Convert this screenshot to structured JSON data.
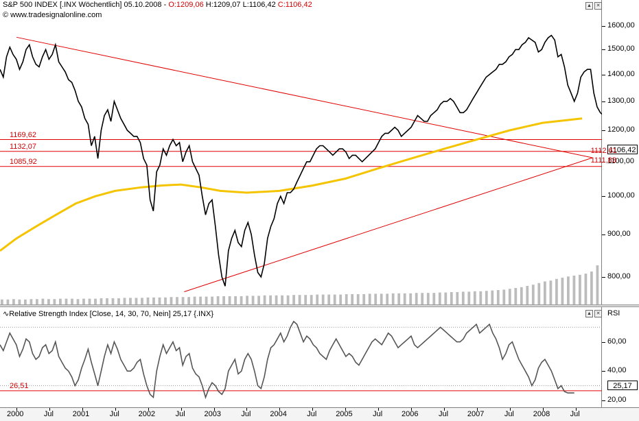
{
  "header": {
    "title": "S&P 500 INDEX [.INX  Wöchentlich] 05.10.2008 - ",
    "open": "O:1209,06",
    "high": "H:1209,07",
    "low": "L:1106,42",
    "close": "C:1106,42",
    "credit": "© www.tradesignalonline.com"
  },
  "rsi_header": {
    "title": "Relative Strength Index [Close, 14, 30, 70, Nein] 25,17 {.INX}",
    "side_label": "RSI"
  },
  "price_box": "1106,42",
  "rsi_box": "25,17",
  "colors": {
    "price": "#000000",
    "ma": "#f5c400",
    "lines": "#e00000",
    "rsi": "#555555",
    "volume": "#bcbcbc"
  },
  "chart_data": [
    {
      "type": "line",
      "title": "S&P 500 INDEX",
      "series": [
        {
          "name": "S&P 500 INDEX",
          "values": [
            1420,
            1390,
            1470,
            1510,
            1480,
            1460,
            1420,
            1450,
            1500,
            1520,
            1470,
            1440,
            1430,
            1470,
            1500,
            1460,
            1480,
            1520,
            1450,
            1430,
            1410,
            1380,
            1370,
            1340,
            1300,
            1280,
            1240,
            1220,
            1150,
            1180,
            1110,
            1200,
            1250,
            1270,
            1230,
            1300,
            1270,
            1240,
            1220,
            1200,
            1190,
            1180,
            1180,
            1160,
            1110,
            1090,
            990,
            960,
            1070,
            1090,
            1140,
            1120,
            1150,
            1170,
            1150,
            1160,
            1100,
            1130,
            1150,
            1100,
            1080,
            1060,
            1000,
            950,
            980,
            990,
            920,
            850,
            800,
            780,
            860,
            890,
            910,
            880,
            870,
            910,
            930,
            900,
            850,
            810,
            800,
            830,
            890,
            920,
            940,
            980,
            1000,
            980,
            1010,
            1010,
            1020,
            1040,
            1060,
            1080,
            1100,
            1100,
            1120,
            1140,
            1150,
            1150,
            1140,
            1130,
            1120,
            1130,
            1140,
            1140,
            1130,
            1110,
            1120,
            1120,
            1110,
            1100,
            1110,
            1120,
            1130,
            1140,
            1160,
            1180,
            1190,
            1190,
            1200,
            1210,
            1200,
            1180,
            1190,
            1200,
            1210,
            1230,
            1250,
            1240,
            1230,
            1230,
            1250,
            1260,
            1270,
            1290,
            1300,
            1300,
            1310,
            1300,
            1280,
            1260,
            1260,
            1270,
            1290,
            1310,
            1330,
            1350,
            1370,
            1390,
            1400,
            1410,
            1420,
            1440,
            1440,
            1450,
            1470,
            1480,
            1500,
            1500,
            1520,
            1530,
            1550,
            1540,
            1530,
            1490,
            1500,
            1530,
            1550,
            1560,
            1540,
            1470,
            1480,
            1430,
            1360,
            1330,
            1300,
            1330,
            1390,
            1410,
            1420,
            1420,
            1330,
            1280,
            1260,
            1250,
            1200,
            1106
          ],
          "x_start": 1999.75,
          "x_step": 0.0496
        },
        {
          "name": "MA",
          "values": [
            860,
            890,
            920,
            950,
            980,
            1000,
            1015,
            1025,
            1030,
            1033,
            1025,
            1015,
            1010,
            1015,
            1030,
            1050,
            1080,
            1110,
            1140,
            1170,
            1200,
            1225,
            1240
          ],
          "x": [
            1999.75,
            2000.0,
            2000.3,
            2000.6,
            2000.9,
            2001.2,
            2001.5,
            2001.9,
            2002.2,
            2002.5,
            2002.8,
            2003.1,
            2003.5,
            2004.0,
            2004.5,
            2005.0,
            2005.5,
            2006.0,
            2006.5,
            2007.0,
            2007.5,
            2008.0,
            2008.6
          ]
        }
      ],
      "y_axis_labels": [
        "1600,00",
        "1500,00",
        "1400,00",
        "1300,00",
        "1200,00",
        "1100,00",
        "1000,00",
        "900,00",
        "800,00"
      ],
      "ylim": [
        750,
        1650
      ],
      "horizontal_lines": [
        {
          "label": "1169,62",
          "value": 1169.62
        },
        {
          "label": "1132,07",
          "value": 1132.07
        },
        {
          "label": "1085,92",
          "value": 1085.92
        }
      ],
      "trendlines": [
        {
          "x": [
            2000.0,
            2008.75
          ],
          "y": [
            1552,
            1112.61
          ],
          "label": "1112,61"
        },
        {
          "x": [
            2002.55,
            2008.75
          ],
          "y": [
            768,
            1111.83
          ],
          "label": "1111,83"
        }
      ],
      "volume": {
        "x_start": 1999.75,
        "x_step": 0.0496,
        "values": [
          12,
          12,
          13,
          12,
          12,
          13,
          13,
          14,
          13,
          13,
          14,
          14,
          14,
          13,
          14,
          14,
          14,
          15,
          15,
          15,
          15,
          16,
          16,
          16,
          16,
          17,
          17,
          17,
          17,
          18,
          18,
          18,
          18,
          19,
          19,
          19,
          19,
          20,
          20,
          20,
          20,
          20,
          21,
          21,
          21,
          22,
          22,
          22,
          22,
          22,
          23,
          23,
          23,
          23,
          24,
          24,
          24,
          24,
          24,
          25,
          25,
          25,
          25,
          26,
          26,
          26,
          26,
          27,
          27,
          27,
          27,
          28,
          28,
          28,
          28,
          29,
          29,
          30,
          30,
          31,
          31,
          32,
          32,
          33,
          34,
          35,
          36,
          38,
          40,
          42,
          45,
          48,
          52,
          56,
          58,
          62,
          65,
          68,
          70,
          72,
          75,
          80,
          95
        ],
        "unit": "relative"
      }
    },
    {
      "type": "line",
      "title": "Relative Strength Index [Close, 14, 30, 70, Nein] 25,17 {.INX}",
      "series": [
        {
          "name": "RSI",
          "values": [
            58,
            54,
            60,
            66,
            62,
            58,
            50,
            55,
            62,
            60,
            52,
            48,
            50,
            56,
            58,
            52,
            54,
            60,
            50,
            46,
            42,
            40,
            36,
            30,
            34,
            42,
            48,
            55,
            46,
            38,
            30,
            40,
            50,
            58,
            52,
            60,
            55,
            48,
            44,
            40,
            40,
            42,
            46,
            48,
            38,
            30,
            24,
            22,
            40,
            50,
            58,
            52,
            56,
            60,
            54,
            56,
            44,
            50,
            52,
            42,
            38,
            36,
            30,
            22,
            28,
            32,
            30,
            26,
            24,
            28,
            40,
            44,
            48,
            38,
            40,
            48,
            52,
            48,
            40,
            30,
            28,
            36,
            48,
            56,
            58,
            62,
            66,
            60,
            64,
            70,
            74,
            72,
            66,
            60,
            64,
            62,
            58,
            56,
            52,
            50,
            48,
            54,
            58,
            62,
            58,
            54,
            50,
            52,
            50,
            46,
            44,
            48,
            52,
            56,
            60,
            62,
            60,
            58,
            62,
            66,
            64,
            60,
            56,
            58,
            60,
            62,
            64,
            58,
            56,
            58,
            60,
            62,
            64,
            66,
            68,
            70,
            68,
            66,
            64,
            62,
            60,
            60,
            62,
            66,
            68,
            70,
            72,
            66,
            68,
            70,
            72,
            66,
            62,
            56,
            48,
            52,
            58,
            60,
            54,
            48,
            44,
            40,
            36,
            30,
            34,
            42,
            46,
            48,
            44,
            40,
            34,
            28,
            30,
            26,
            25,
            25,
            25
          ],
          "x_start": 1999.75,
          "x_step": 0.0496
        }
      ],
      "y_axis_labels": [
        "60,00",
        "40,00",
        "20,00"
      ],
      "ylim": [
        18,
        80
      ],
      "horizontal_lines": [
        {
          "label": "26,51",
          "value": 26.51
        }
      ],
      "dotted_levels": [
        30,
        70
      ]
    }
  ],
  "x_axis": {
    "labels": [
      "2000",
      "Jul",
      "2001",
      "Jul",
      "2002",
      "Jul",
      "2003",
      "Jul",
      "2004",
      "Jul",
      "2005",
      "Jul",
      "2006",
      "Jul",
      "2007",
      "Jul",
      "2008",
      "Jul"
    ],
    "values": [
      2000.0,
      2000.5,
      2001.0,
      2001.5,
      2002.0,
      2002.5,
      2003.0,
      2003.5,
      2004.0,
      2004.5,
      2005.0,
      2005.5,
      2006.0,
      2006.5,
      2007.0,
      2007.5,
      2008.0,
      2008.5
    ],
    "xlim": [
      1999.75,
      2008.9
    ]
  }
}
